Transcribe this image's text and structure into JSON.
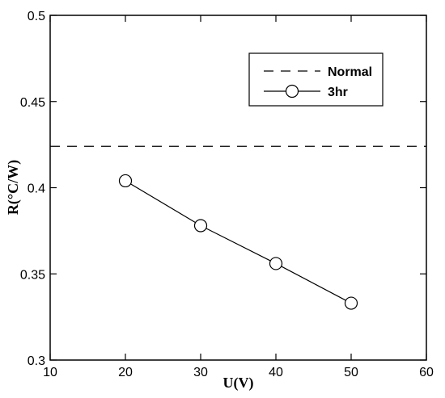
{
  "chart_data": {
    "type": "line",
    "xlabel": "U(V)",
    "ylabel": "R(°C/W)",
    "xlim": [
      10,
      60
    ],
    "ylim": [
      0.3,
      0.5
    ],
    "xticks": [
      "10",
      "20",
      "30",
      "40",
      "50",
      "60"
    ],
    "yticks": [
      "0.3",
      "0.35",
      "0.4",
      "0.45",
      "0.5"
    ],
    "grid": false,
    "legend_position": "top-right",
    "series": [
      {
        "name": "Normal",
        "style": "dashed-horizontal",
        "marker": "none",
        "color": "#000000",
        "y": 0.424
      },
      {
        "name": "3hr",
        "style": "solid",
        "marker": "open-circle",
        "color": "#000000",
        "x": [
          20,
          30,
          40,
          50
        ],
        "y": [
          0.404,
          0.378,
          0.356,
          0.333
        ]
      }
    ]
  }
}
